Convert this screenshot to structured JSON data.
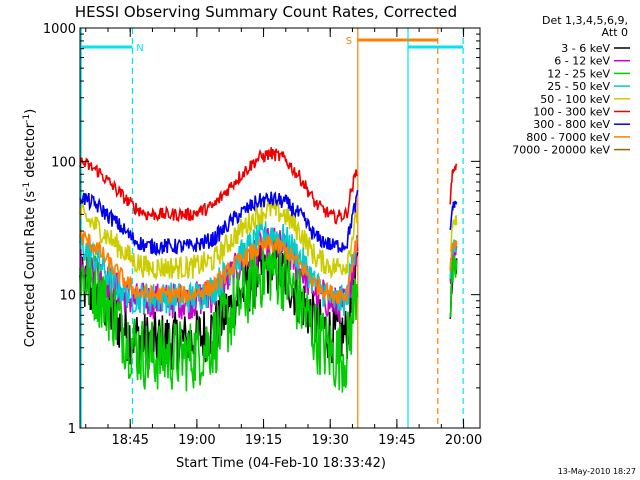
{
  "chart_data": {
    "type": "line",
    "title": "HESSI Observing Summary Count Rates, Corrected",
    "xlabel": "Start Time (04-Feb-10 18:33:42)",
    "ylabel_parts": {
      "a": "Corrected Count Rate (s",
      "sup1": "-1",
      "b": " detector",
      "sup2": "-1",
      "c": ")"
    },
    "x_scale": "time",
    "x_start": "18:33:42",
    "x_range_minutes": [
      0,
      90
    ],
    "x_ticks": [
      {
        "label": "18:45",
        "minute": 11.3
      },
      {
        "label": "19:00",
        "minute": 26.3
      },
      {
        "label": "19:15",
        "minute": 41.3
      },
      {
        "label": "19:30",
        "minute": 56.3
      },
      {
        "label": "19:45",
        "minute": 71.3
      },
      {
        "label": "20:00",
        "minute": 86.3
      }
    ],
    "y_scale": "log",
    "y_range": [
      1,
      1000
    ],
    "y_ticks": [
      {
        "label": "1",
        "value": 1
      },
      {
        "label": "10",
        "value": 10
      },
      {
        "label": "100",
        "value": 100
      },
      {
        "label": "1000",
        "value": 1000
      }
    ],
    "legend_header": [
      "Det 1,3,4,5,6,9,",
      "Att 0"
    ],
    "legend_placement": "right",
    "series": [
      {
        "name": "3 - 6 keV",
        "color": "#000000",
        "noise": 0.22,
        "points": [
          [
            0,
            12
          ],
          [
            5,
            9
          ],
          [
            8,
            6.5
          ],
          [
            11,
            5
          ],
          [
            15,
            4.5
          ],
          [
            25,
            4.5
          ],
          [
            30,
            5.5
          ],
          [
            35,
            9
          ],
          [
            40,
            14
          ],
          [
            43,
            16
          ],
          [
            46,
            14
          ],
          [
            50,
            9
          ],
          [
            53,
            6
          ],
          [
            57,
            5
          ],
          [
            60,
            5
          ],
          [
            61,
            8
          ],
          [
            62.5,
            16
          ]
        ],
        "points2": [
          [
            83.3,
            7
          ],
          [
            83.8,
            16
          ],
          [
            84.8,
            18
          ]
        ]
      },
      {
        "name": "6 - 12 keV",
        "color": "#cc00cc",
        "noise": 0.14,
        "points": [
          [
            0,
            20
          ],
          [
            4,
            15
          ],
          [
            8,
            11
          ],
          [
            12,
            9
          ],
          [
            25,
            9
          ],
          [
            30,
            10
          ],
          [
            35,
            15
          ],
          [
            40,
            22
          ],
          [
            43,
            24
          ],
          [
            46,
            22
          ],
          [
            50,
            15
          ],
          [
            53,
            10.5
          ],
          [
            57,
            8.5
          ],
          [
            60,
            8.5
          ],
          [
            61,
            14
          ],
          [
            62.5,
            25
          ]
        ],
        "points2": [
          [
            83.3,
            12
          ],
          [
            83.8,
            20
          ],
          [
            84.8,
            22
          ]
        ]
      },
      {
        "name": "12 - 25 keV",
        "color": "#00cc00",
        "noise": 0.28,
        "points": [
          [
            0,
            15
          ],
          [
            4,
            11
          ],
          [
            8,
            7
          ],
          [
            11,
            4.5
          ],
          [
            15,
            3.5
          ],
          [
            25,
            3.5
          ],
          [
            30,
            4.5
          ],
          [
            35,
            8
          ],
          [
            40,
            14
          ],
          [
            43,
            16
          ],
          [
            46,
            14
          ],
          [
            50,
            8
          ],
          [
            53,
            5
          ],
          [
            57,
            3.5
          ],
          [
            60,
            3.5
          ],
          [
            61,
            6
          ],
          [
            62.5,
            14
          ]
        ],
        "points2": [
          [
            83.3,
            8
          ],
          [
            83.8,
            14
          ],
          [
            84.8,
            16
          ]
        ]
      },
      {
        "name": "25 - 50 keV",
        "color": "#00cccc",
        "noise": 0.12,
        "points": [
          [
            0,
            24
          ],
          [
            4,
            18
          ],
          [
            8,
            12
          ],
          [
            12,
            9.5
          ],
          [
            25,
            9.5
          ],
          [
            30,
            11
          ],
          [
            35,
            18
          ],
          [
            40,
            26
          ],
          [
            43,
            29
          ],
          [
            46,
            26
          ],
          [
            50,
            18
          ],
          [
            53,
            12
          ],
          [
            57,
            9
          ],
          [
            60,
            9
          ],
          [
            61,
            16
          ],
          [
            62.5,
            30
          ]
        ],
        "points2": [
          [
            83.3,
            14
          ],
          [
            83.8,
            22
          ],
          [
            84.8,
            24
          ]
        ]
      },
      {
        "name": "50 - 100 keV",
        "color": "#cccc00",
        "noise": 0.09,
        "points": [
          [
            0,
            40
          ],
          [
            4,
            32
          ],
          [
            8,
            24
          ],
          [
            12,
            18
          ],
          [
            15,
            16
          ],
          [
            25,
            16
          ],
          [
            30,
            18
          ],
          [
            35,
            28
          ],
          [
            40,
            40
          ],
          [
            43,
            44
          ],
          [
            46,
            40
          ],
          [
            50,
            28
          ],
          [
            53,
            19
          ],
          [
            57,
            16
          ],
          [
            60,
            17
          ],
          [
            61,
            25
          ],
          [
            62.5,
            42
          ]
        ],
        "points2": [
          [
            83.3,
            20
          ],
          [
            83.8,
            32
          ],
          [
            84.8,
            37
          ]
        ]
      },
      {
        "name": "100 - 300 keV",
        "color": "#ee0000",
        "noise": 0.05,
        "points": [
          [
            0,
            100
          ],
          [
            4,
            85
          ],
          [
            8,
            62
          ],
          [
            12,
            46
          ],
          [
            15,
            40
          ],
          [
            25,
            40
          ],
          [
            30,
            46
          ],
          [
            35,
            72
          ],
          [
            40,
            105
          ],
          [
            43,
            115
          ],
          [
            46,
            105
          ],
          [
            50,
            72
          ],
          [
            53,
            48
          ],
          [
            57,
            38
          ],
          [
            60,
            40
          ],
          [
            61,
            60
          ],
          [
            62.5,
            90
          ]
        ],
        "points2": [
          [
            83.3,
            50
          ],
          [
            83.8,
            85
          ],
          [
            84.8,
            92
          ]
        ]
      },
      {
        "name": "300 - 800 keV",
        "color": "#0000ee",
        "noise": 0.06,
        "points": [
          [
            0,
            55
          ],
          [
            4,
            46
          ],
          [
            8,
            35
          ],
          [
            12,
            26
          ],
          [
            15,
            23
          ],
          [
            25,
            23
          ],
          [
            30,
            26
          ],
          [
            35,
            38
          ],
          [
            40,
            50
          ],
          [
            43,
            52
          ],
          [
            46,
            50
          ],
          [
            50,
            38
          ],
          [
            53,
            27
          ],
          [
            57,
            23
          ],
          [
            60,
            24
          ],
          [
            61,
            35
          ],
          [
            62.5,
            55
          ]
        ],
        "points2": [
          [
            83.3,
            30
          ],
          [
            83.8,
            46
          ],
          [
            84.8,
            50
          ]
        ]
      },
      {
        "name": "800 - 7000 keV",
        "color": "#ff7f00",
        "noise": 0.07,
        "points": [
          [
            0,
            28
          ],
          [
            4,
            22
          ],
          [
            8,
            15
          ],
          [
            12,
            11
          ],
          [
            15,
            10
          ],
          [
            25,
            10
          ],
          [
            30,
            11.5
          ],
          [
            35,
            17
          ],
          [
            40,
            22
          ],
          [
            43,
            24
          ],
          [
            46,
            22
          ],
          [
            50,
            16
          ],
          [
            53,
            12
          ],
          [
            57,
            10
          ],
          [
            60,
            10
          ],
          [
            61,
            16
          ],
          [
            62.5,
            28
          ]
        ],
        "points2": [
          [
            83.3,
            16
          ],
          [
            83.8,
            23
          ],
          [
            84.8,
            25
          ]
        ]
      },
      {
        "name": "7000 - 20000 keV",
        "color": "#996600",
        "noise": 0,
        "points": [],
        "points2": []
      }
    ],
    "flags": [
      {
        "label": "N",
        "color": "#00e5ee",
        "bar": [
          0,
          11.8
        ],
        "dashed_at": 11.8,
        "label_at": 13.5,
        "solid_at": 0
      },
      {
        "label": "S",
        "color": "#ff8000",
        "bar": [
          62.5,
          80.5
        ],
        "dashed_at": 80.5,
        "label_at": 60.5,
        "solid_at": 62.5
      },
      {
        "label": "",
        "color": "#00e5ee",
        "bar": [
          73.8,
          86.2
        ],
        "dashed_at": 86.2,
        "label_at": 0,
        "solid_at": 73.8
      }
    ],
    "footer_date": "13-May-2010 18:27"
  }
}
